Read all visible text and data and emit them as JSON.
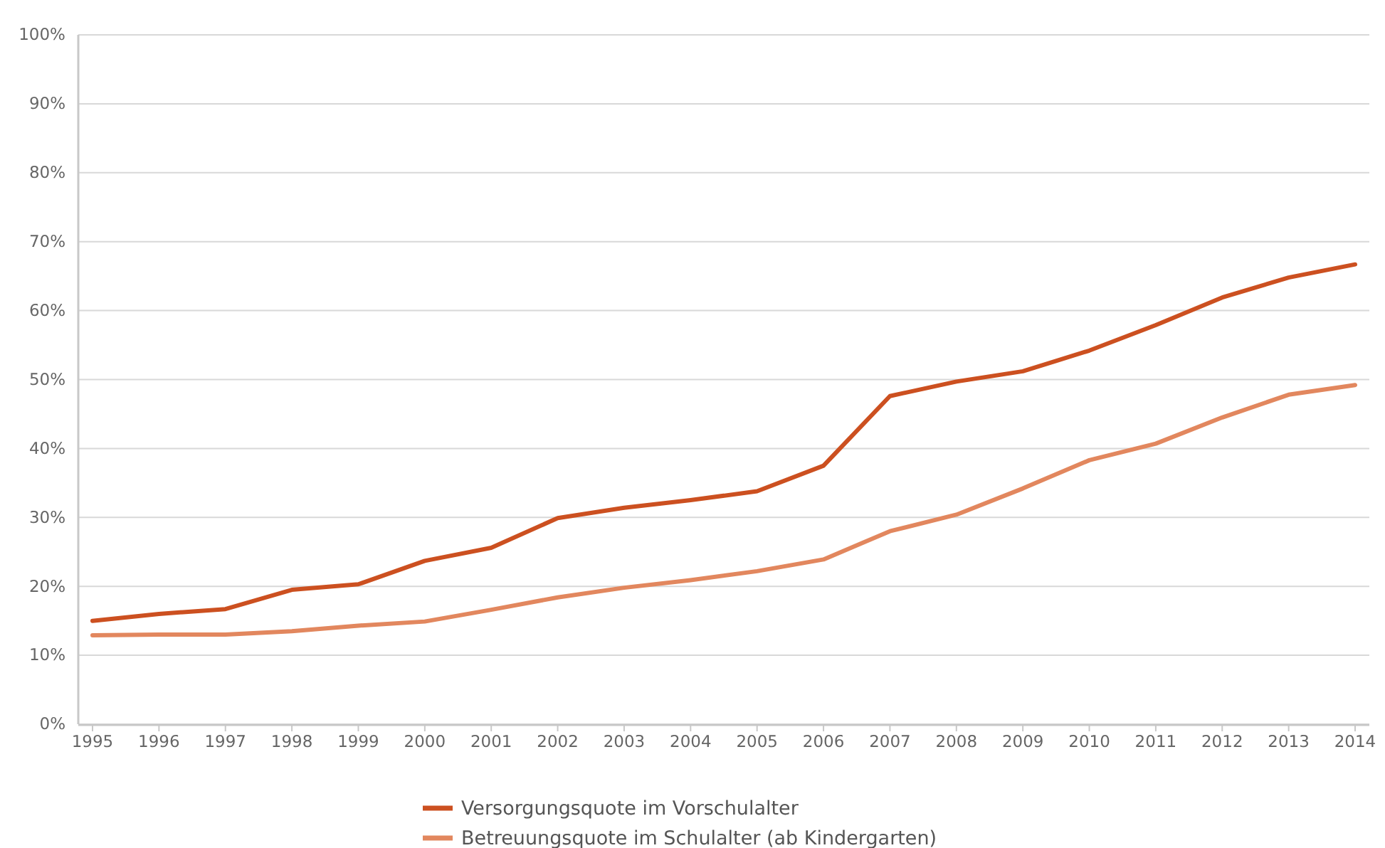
{
  "chart_data": {
    "type": "line",
    "categories": [
      "1995",
      "1996",
      "1997",
      "1998",
      "1999",
      "2000",
      "2001",
      "2002",
      "2003",
      "2004",
      "2005",
      "2006",
      "2007",
      "2008",
      "2009",
      "2010",
      "2011",
      "2012",
      "2013",
      "2014"
    ],
    "series": [
      {
        "name": "Versorgungsquote im Vorschulalter",
        "color": "#cc5020",
        "values": [
          15.0,
          16.0,
          16.7,
          19.5,
          20.3,
          23.7,
          25.6,
          29.9,
          31.4,
          32.5,
          33.8,
          37.5,
          47.6,
          49.7,
          51.2,
          54.2,
          57.9,
          61.9,
          64.8,
          66.7
        ]
      },
      {
        "name": "Betreuungsquote im Schulalter (ab Kindergarten)",
        "color": "#e2875e",
        "values": [
          12.9,
          13.0,
          13.0,
          13.5,
          14.3,
          14.9,
          16.6,
          18.4,
          19.8,
          20.9,
          22.2,
          23.9,
          28.0,
          30.4,
          34.2,
          38.3,
          40.7,
          44.5,
          47.8,
          49.2
        ]
      }
    ],
    "ylim": [
      0,
      100
    ],
    "yticks": [
      {
        "value": 0,
        "label": "0%"
      },
      {
        "value": 10,
        "label": "10%"
      },
      {
        "value": 20,
        "label": "20%"
      },
      {
        "value": 30,
        "label": "30%"
      },
      {
        "value": 40,
        "label": "40%"
      },
      {
        "value": 50,
        "label": "50%"
      },
      {
        "value": 60,
        "label": "60%"
      },
      {
        "value": 70,
        "label": "70%"
      },
      {
        "value": 80,
        "label": "80%"
      },
      {
        "value": 90,
        "label": "90%"
      },
      {
        "value": 100,
        "label": "100%"
      }
    ],
    "grid": "y",
    "legend": "bottom",
    "marker": "none",
    "line_style": "solid"
  }
}
